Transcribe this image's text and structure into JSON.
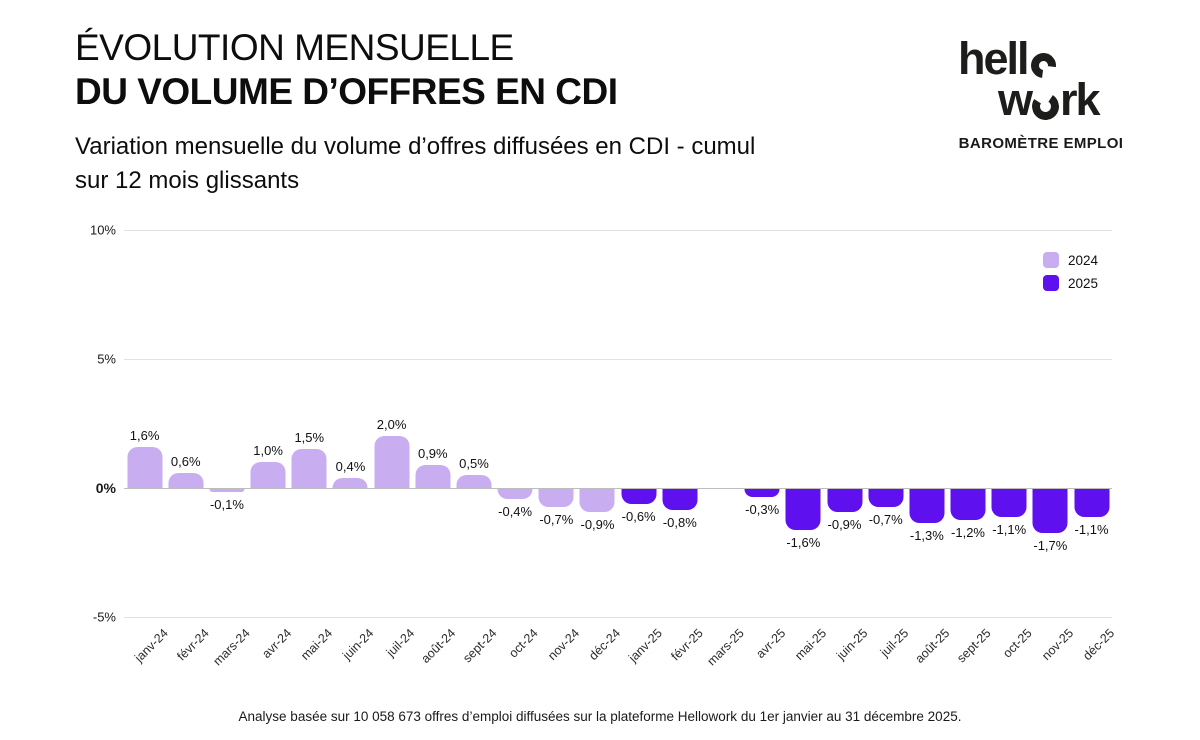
{
  "header": {
    "title_line1": "ÉVOLUTION MENSUELLE",
    "title_line2": "DU VOLUME D’OFFRES EN CDI",
    "subtitle": "Variation mensuelle du volume d’offres diffusées en CDI - cumul sur 12 mois glissants"
  },
  "brand": {
    "logo_part1": "hell",
    "logo_part2": "w",
    "logo_part3": "rk",
    "tagline": "BAROMÈTRE EMPLOI"
  },
  "chart_data": {
    "type": "bar",
    "title": "",
    "xlabel": "",
    "ylabel": "",
    "ylim": [
      -5,
      10
    ],
    "grid": true,
    "legend_position": "top-right",
    "yticks": [
      {
        "label": "10%",
        "value": 10
      },
      {
        "label": "5%",
        "value": 5
      },
      {
        "label": "0%",
        "value": 0
      },
      {
        "label": "-5%",
        "value": -5
      }
    ],
    "categories": [
      "janv-24",
      "févr-24",
      "mars-24",
      "avr-24",
      "mai-24",
      "juin-24",
      "juil-24",
      "août-24",
      "sept-24",
      "oct-24",
      "nov-24",
      "déc-24",
      "janv-25",
      "févr-25",
      "mars-25",
      "avr-25",
      "mai-25",
      "juin-25",
      "juil-25",
      "août-25",
      "sept-25",
      "oct-25",
      "nov-25",
      "déc-25"
    ],
    "series": [
      {
        "name": "2024",
        "color": "#c9adf1",
        "values": [
          1.6,
          0.6,
          -0.1,
          1.0,
          1.5,
          0.4,
          2.0,
          0.9,
          0.5,
          -0.4,
          -0.7,
          -0.9,
          null,
          null,
          null,
          null,
          null,
          null,
          null,
          null,
          null,
          null,
          null,
          null
        ]
      },
      {
        "name": "2025",
        "color": "#5e11ee",
        "values": [
          null,
          null,
          null,
          null,
          null,
          null,
          null,
          null,
          null,
          null,
          null,
          null,
          -0.6,
          -0.8,
          null,
          -0.3,
          -1.6,
          -0.9,
          -0.7,
          -1.3,
          -1.2,
          -1.1,
          -1.7,
          -1.1
        ]
      }
    ],
    "value_labels": [
      "1,6%",
      "0,6%",
      "-0,1%",
      "1,0%",
      "1,5%",
      "0,4%",
      "2,0%",
      "0,9%",
      "0,5%",
      "-0,4%",
      "-0,7%",
      "-0,9%",
      "-0,6%",
      "-0,8%",
      "",
      "-0,3%",
      "-1,6%",
      "-0,9%",
      "-0,7%",
      "-1,3%",
      "-1,2%",
      "-1,1%",
      "-1,7%",
      "-1,1%"
    ]
  },
  "footer": {
    "source": "Analyse basée sur 10 058 673 offres d’emploi diffusées sur la plateforme Hellowork du 1er janvier au 31 décembre 2025."
  }
}
